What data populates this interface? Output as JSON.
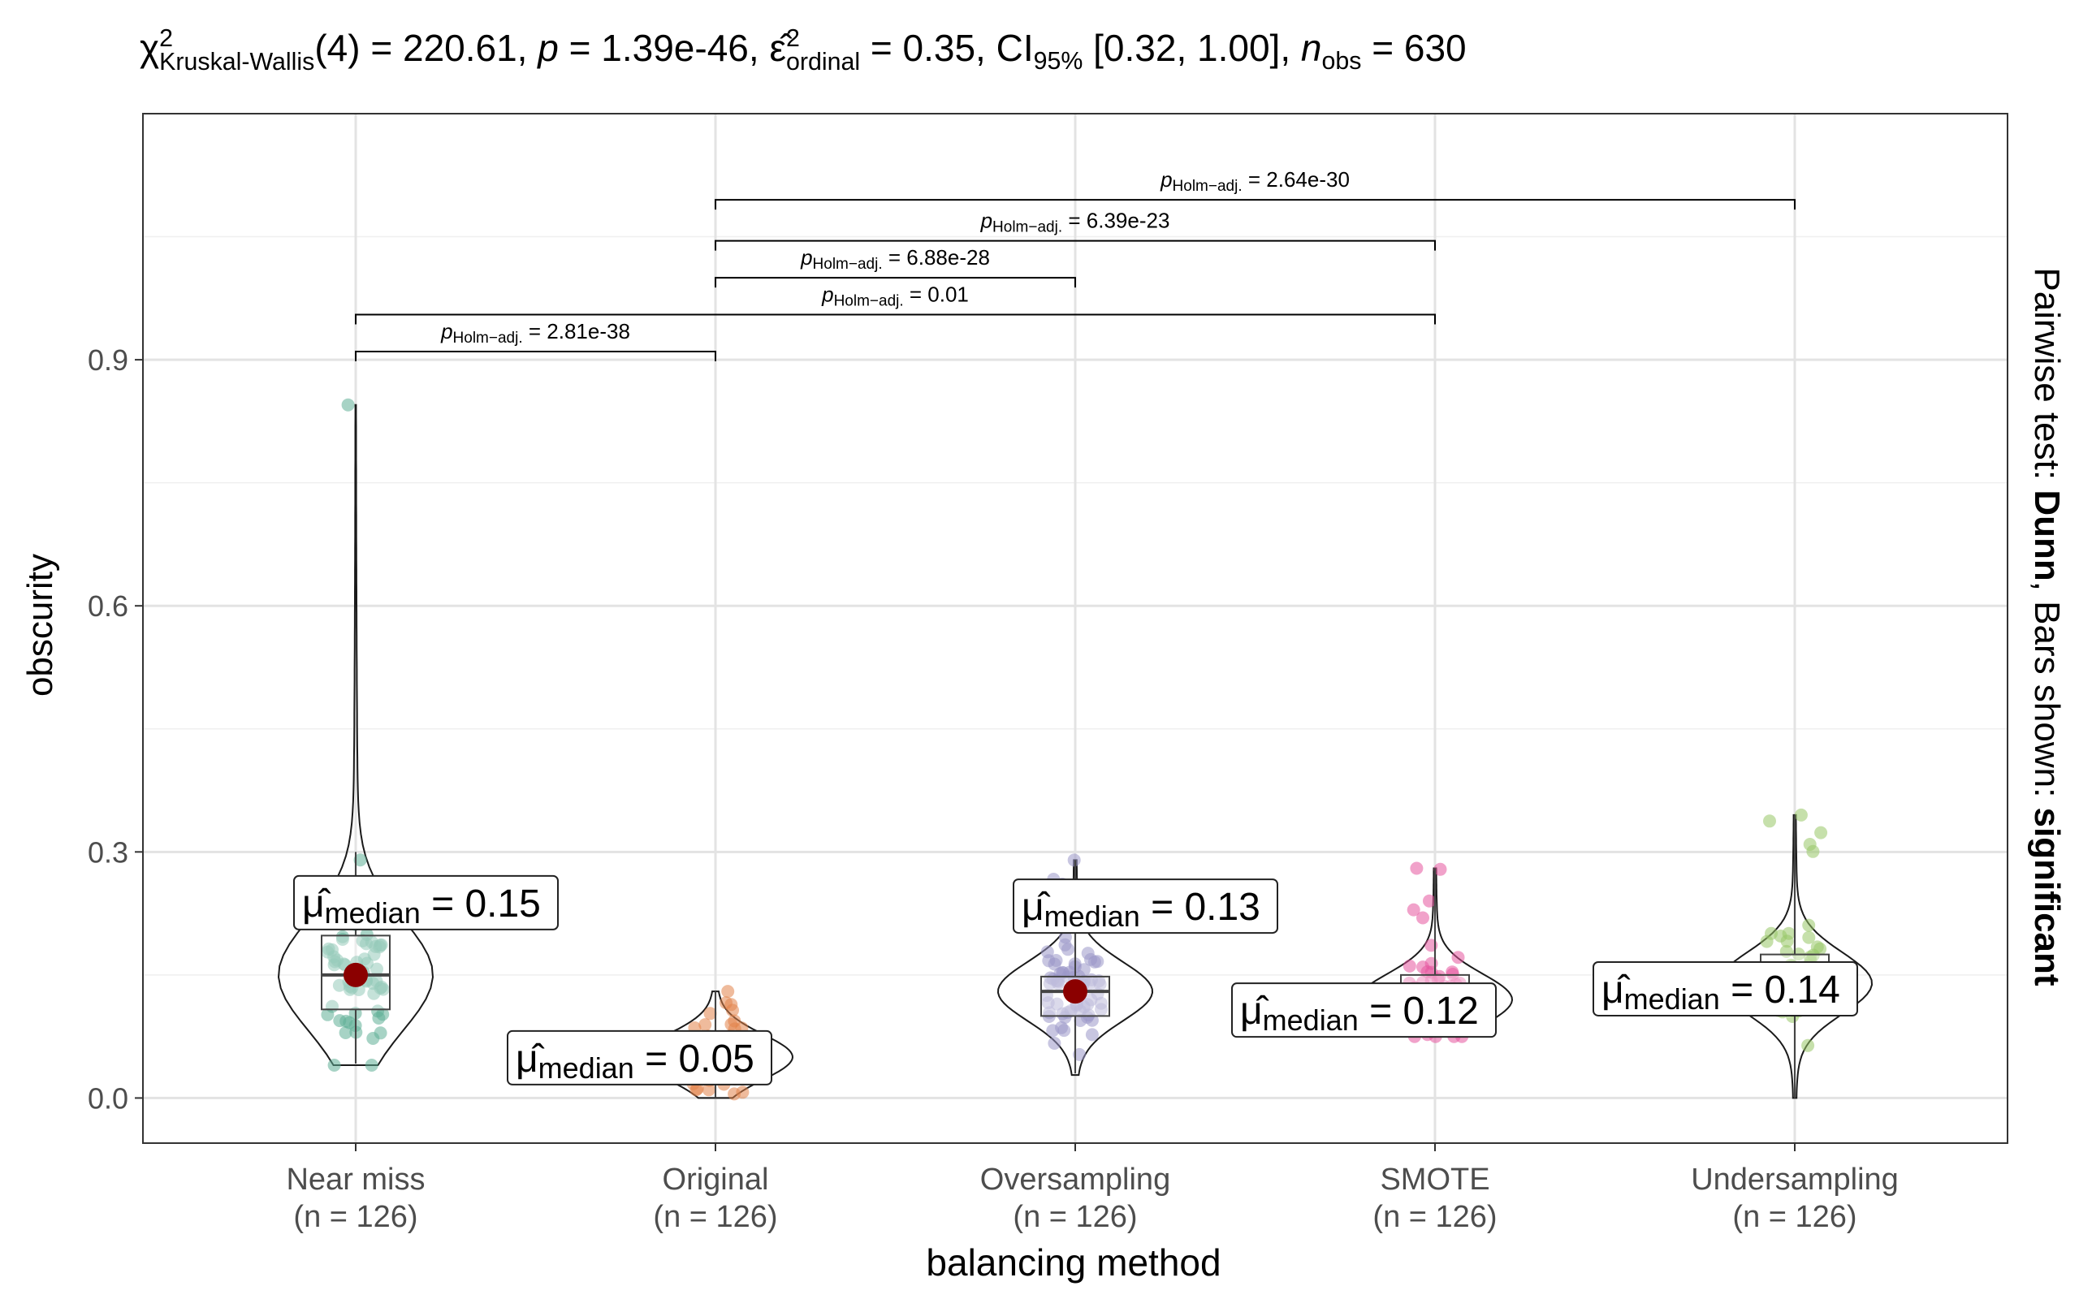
{
  "chart_data": {
    "type": "violin",
    "title": {
      "chi": "χ",
      "chi_sup": "2",
      "chi_sub": "Kruskal-Wallis",
      "df": "(4)",
      "eq1": " = 220.61, ",
      "p": "p",
      "eq2": " = 1.39e-46, ",
      "eps": "ε̂",
      "eps_sup": "2",
      "eps_sub": "ordinal",
      "eq3": " = 0.35, CI",
      "ci_sub": "95%",
      "eq4": " [0.32, 1.00], ",
      "n": "n",
      "n_sub": "obs",
      "eq5": " = 630"
    },
    "xlabel": "balancing method",
    "ylabel": "obscurity",
    "right_caption": {
      "prefix": "Pairwise test: ",
      "test": "Dunn",
      "middle": ", Bars shown: ",
      "shown": "significant"
    },
    "ylim": [
      -0.055,
      1.2
    ],
    "yticks": [
      0.0,
      0.3,
      0.6,
      0.9
    ],
    "ytick_labels": [
      "0.0",
      "0.3",
      "0.6",
      "0.9"
    ],
    "grid": true,
    "categories": [
      {
        "name": "Near miss",
        "n_label": "(n = 126)",
        "color": "#5fae96",
        "median": 0.15,
        "median_label": "0.15",
        "q1": 0.108,
        "q3": 0.198,
        "whisker_low": 0.042,
        "whisker_high": 0.3,
        "min": 0.04,
        "max": 0.845
      },
      {
        "name": "Original",
        "n_label": "(n = 126)",
        "color": "#e2844a",
        "median": 0.05,
        "median_label": "0.05",
        "q1": 0.035,
        "q3": 0.072,
        "whisker_low": 0.0,
        "whisker_high": 0.13,
        "min": 0.0,
        "max": 0.13
      },
      {
        "name": "Oversampling",
        "n_label": "(n = 126)",
        "color": "#9b97c8",
        "median": 0.13,
        "median_label": "0.13",
        "q1": 0.1,
        "q3": 0.148,
        "whisker_low": 0.03,
        "whisker_high": 0.29,
        "min": 0.028,
        "max": 0.29
      },
      {
        "name": "SMOTE",
        "n_label": "(n = 126)",
        "color": "#e5559f",
        "median": 0.12,
        "median_label": "0.12",
        "q1": 0.108,
        "q3": 0.15,
        "whisker_low": 0.075,
        "whisker_high": 0.28,
        "min": 0.075,
        "max": 0.28
      },
      {
        "name": "Undersampling",
        "n_label": "(n = 126)",
        "color": "#98c766",
        "median": 0.14,
        "median_label": "0.14",
        "q1": 0.125,
        "q3": 0.175,
        "whisker_low": 0.0,
        "whisker_high": 0.345,
        "min": 0.0,
        "max": 0.345
      }
    ],
    "median_label_text": {
      "mu": "μ̂",
      "sub": "median",
      "eq": " = "
    },
    "pairwise": [
      {
        "from": 0,
        "to": 1,
        "y": 0.91,
        "p_label": "2.81e-38"
      },
      {
        "from": 0,
        "to": 3,
        "y": 0.955,
        "p_label": "0.01"
      },
      {
        "from": 1,
        "to": 2,
        "y": 1.0,
        "p_label": "6.88e-28"
      },
      {
        "from": 1,
        "to": 3,
        "y": 1.045,
        "p_label": "6.39e-23"
      },
      {
        "from": 1,
        "to": 4,
        "y": 1.095,
        "p_label": "2.64e-30"
      }
    ],
    "pairwise_label": {
      "p": "p",
      "sub": "Holm−adj.",
      "eq": " = "
    }
  }
}
